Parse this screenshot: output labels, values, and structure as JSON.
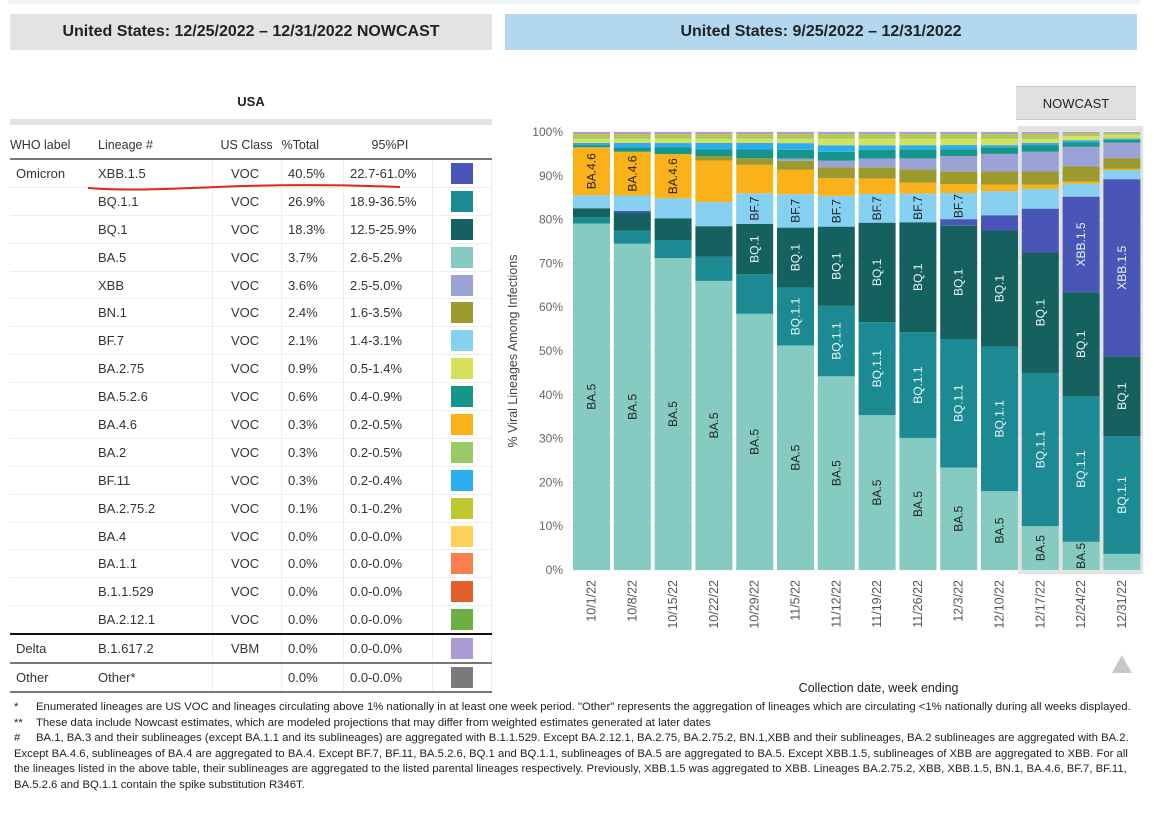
{
  "header": {
    "left_title": "United States: 12/25/2022 – 12/31/2022 NOWCAST",
    "right_title": "United States: 9/25/2022 – 12/31/2022"
  },
  "table": {
    "region_title": "USA",
    "columns": [
      "WHO label",
      "Lineage #",
      "US Class",
      "%Total",
      "95%PI"
    ],
    "rows": [
      {
        "who": "Omicron",
        "lineage": "XBB.1.5",
        "cls": "VOC",
        "pct": "40.5%",
        "pi": "22.7-61.0%",
        "color": "#4a55b8"
      },
      {
        "who": "",
        "lineage": "BQ.1.1",
        "cls": "VOC",
        "pct": "26.9%",
        "pi": "18.9-36.5%",
        "color": "#1b8a93"
      },
      {
        "who": "",
        "lineage": "BQ.1",
        "cls": "VOC",
        "pct": "18.3%",
        "pi": "12.5-25.9%",
        "color": "#14615f"
      },
      {
        "who": "",
        "lineage": "BA.5",
        "cls": "VOC",
        "pct": "3.7%",
        "pi": "2.6-5.2%",
        "color": "#86cbc2"
      },
      {
        "who": "",
        "lineage": "XBB",
        "cls": "VOC",
        "pct": "3.6%",
        "pi": "2.5-5.0%",
        "color": "#9ba3d6"
      },
      {
        "who": "",
        "lineage": "BN.1",
        "cls": "VOC",
        "pct": "2.4%",
        "pi": "1.6-3.5%",
        "color": "#9a9a2e"
      },
      {
        "who": "",
        "lineage": "BF.7",
        "cls": "VOC",
        "pct": "2.1%",
        "pi": "1.4-3.1%",
        "color": "#86d0f2"
      },
      {
        "who": "",
        "lineage": "BA.2.75",
        "cls": "VOC",
        "pct": "0.9%",
        "pi": "0.5-1.4%",
        "color": "#d6e05a"
      },
      {
        "who": "",
        "lineage": "BA.5.2.6",
        "cls": "VOC",
        "pct": "0.6%",
        "pi": "0.4-0.9%",
        "color": "#14968a"
      },
      {
        "who": "",
        "lineage": "BA.4.6",
        "cls": "VOC",
        "pct": "0.3%",
        "pi": "0.2-0.5%",
        "color": "#fbb21a"
      },
      {
        "who": "",
        "lineage": "BA.2",
        "cls": "VOC",
        "pct": "0.3%",
        "pi": "0.2-0.5%",
        "color": "#98cb68"
      },
      {
        "who": "",
        "lineage": "BF.11",
        "cls": "VOC",
        "pct": "0.3%",
        "pi": "0.2-0.4%",
        "color": "#2aaeef"
      },
      {
        "who": "",
        "lineage": "BA.2.75.2",
        "cls": "VOC",
        "pct": "0.1%",
        "pi": "0.1-0.2%",
        "color": "#bfc72f"
      },
      {
        "who": "",
        "lineage": "BA.4",
        "cls": "VOC",
        "pct": "0.0%",
        "pi": "0.0-0.0%",
        "color": "#fdd25a"
      },
      {
        "who": "",
        "lineage": "BA.1.1",
        "cls": "VOC",
        "pct": "0.0%",
        "pi": "0.0-0.0%",
        "color": "#fb7f4c"
      },
      {
        "who": "",
        "lineage": "B.1.1.529",
        "cls": "VOC",
        "pct": "0.0%",
        "pi": "0.0-0.0%",
        "color": "#e2602a"
      },
      {
        "who": "",
        "lineage": "BA.2.12.1",
        "cls": "VOC",
        "pct": "0.0%",
        "pi": "0.0-0.0%",
        "color": "#6eae42"
      },
      {
        "who": "Delta",
        "lineage": "B.1.617.2",
        "cls": "VBM",
        "pct": "0.0%",
        "pi": "0.0-0.0%",
        "color": "#ab9bd6"
      },
      {
        "who": "Other",
        "lineage": "Other*",
        "cls": "",
        "pct": "0.0%",
        "pi": "0.0-0.0%",
        "color": "#7a7a7a"
      }
    ]
  },
  "nowcast_label": "NOWCAST",
  "chart_data": {
    "type": "bar",
    "stacked": true,
    "title": "United States: 9/25/2022 – 12/31/2022",
    "xlabel": "Collection date, week ending",
    "ylabel": "% Viral Lineages Among Infections",
    "ylim": [
      0,
      100
    ],
    "yticks": [
      "0%",
      "10%",
      "20%",
      "30%",
      "40%",
      "50%",
      "60%",
      "70%",
      "80%",
      "90%",
      "100%"
    ],
    "categories": [
      "10/1/22",
      "10/8/22",
      "10/15/22",
      "10/22/22",
      "10/29/22",
      "11/5/22",
      "11/12/22",
      "11/19/22",
      "11/26/22",
      "12/3/22",
      "12/10/22",
      "12/17/22",
      "12/24/22",
      "12/31/22"
    ],
    "nowcast_categories": [
      "12/17/22",
      "12/24/22",
      "12/31/22"
    ],
    "series": [
      {
        "name": "BA.5",
        "color": "#86cbc2",
        "values": [
          79.5,
          74.5,
          70.5,
          66,
          58.5,
          50.5,
          44,
          35,
          30,
          23.5,
          18,
          10,
          6.5,
          3.7
        ]
      },
      {
        "name": "BQ.1.1",
        "color": "#1b8a93",
        "values": [
          1.5,
          3,
          4,
          5.5,
          9,
          13,
          16,
          21,
          24,
          29.5,
          33,
          35,
          33.5,
          26.9
        ]
      },
      {
        "name": "BQ.1",
        "color": "#14615f",
        "values": [
          2,
          4,
          5,
          7,
          11.5,
          13.5,
          18,
          22.5,
          25,
          26,
          26.5,
          27.5,
          24,
          18.3
        ]
      },
      {
        "name": "XBB.1.5",
        "color": "#4a55b8",
        "values": [
          0,
          0.5,
          0,
          0,
          0,
          0,
          0,
          0,
          0,
          1.5,
          3.5,
          10,
          22,
          40.5
        ]
      },
      {
        "name": "BF.7",
        "color": "#86d0f2",
        "values": [
          3,
          3.5,
          4.5,
          5.5,
          7,
          7.5,
          7,
          6.5,
          6.5,
          6,
          5.5,
          4.5,
          3,
          2.1
        ]
      },
      {
        "name": "BA.4.6",
        "color": "#fbb21a",
        "values": [
          11,
          10,
          10,
          9.5,
          6.5,
          5.5,
          4,
          3.5,
          2.5,
          2,
          1.5,
          1,
          0.5,
          0.3
        ]
      },
      {
        "name": "BN.1",
        "color": "#9a9a2e",
        "values": [
          0,
          0,
          0,
          1,
          1.5,
          2,
          2.5,
          2.5,
          3,
          3,
          3,
          3,
          3.5,
          2.4
        ]
      },
      {
        "name": "XBB",
        "color": "#9ba3d6",
        "values": [
          0,
          0,
          0,
          0,
          0,
          0.5,
          1.5,
          2,
          2.5,
          3.5,
          4,
          4.5,
          4.5,
          3.6
        ]
      },
      {
        "name": "BA.5.2.6",
        "color": "#14968a",
        "values": [
          0.5,
          1,
          1.5,
          1.5,
          2,
          2,
          2,
          2,
          2,
          1.5,
          1.5,
          1.5,
          1,
          0.6
        ]
      },
      {
        "name": "BF.11",
        "color": "#2aaeef",
        "values": [
          0.5,
          1,
          1,
          1.5,
          1.5,
          1.5,
          1.5,
          1,
          1,
          1,
          0.5,
          0.5,
          0.5,
          0.3
        ]
      },
      {
        "name": "BA.2.75",
        "color": "#d6e05a",
        "values": [
          1,
          1,
          1,
          1,
          1,
          1,
          1.5,
          1.5,
          1.5,
          1.5,
          1.5,
          1,
          1,
          0.9
        ]
      },
      {
        "name": "BA.2",
        "color": "#98cb68",
        "values": [
          0.5,
          0.5,
          0.5,
          0.5,
          0.5,
          0.5,
          0.5,
          0.5,
          0.5,
          0.5,
          0.5,
          0.5,
          0.3,
          0.3
        ]
      },
      {
        "name": "BA.2.75.2",
        "color": "#bfc72f",
        "values": [
          0.5,
          0.5,
          0.5,
          0.5,
          0.5,
          0.5,
          0.5,
          0.5,
          0.5,
          0.5,
          0.5,
          0.5,
          0.3,
          0.1
        ]
      },
      {
        "name": "Other",
        "color": "#ab9bd6",
        "values": [
          0.5,
          0.5,
          0.5,
          0.5,
          0.5,
          0.5,
          0.5,
          0.5,
          0.5,
          0.5,
          0.5,
          0.5,
          0.3,
          0.2
        ]
      }
    ],
    "bar_labels": [
      {
        "category": "10/1/22",
        "series": "BA.5",
        "text": "BA.5"
      },
      {
        "category": "10/1/22",
        "series": "BA.4.6",
        "text": "BA.4.6"
      },
      {
        "category": "10/8/22",
        "series": "BA.5",
        "text": "BA.5"
      },
      {
        "category": "10/8/22",
        "series": "BA.4.6",
        "text": "BA.4.6"
      },
      {
        "category": "10/15/22",
        "series": "BA.5",
        "text": "BA.5"
      },
      {
        "category": "10/15/22",
        "series": "BA.4.6",
        "text": "BA.4.6"
      },
      {
        "category": "10/22/22",
        "series": "BA.5",
        "text": "BA.5"
      },
      {
        "category": "10/29/22",
        "series": "BA.5",
        "text": "BA.5"
      },
      {
        "category": "10/29/22",
        "series": "BQ.1",
        "text": "BQ.1"
      },
      {
        "category": "10/29/22",
        "series": "BF.7",
        "text": "BF.7"
      },
      {
        "category": "11/5/22",
        "series": "BA.5",
        "text": "BA.5"
      },
      {
        "category": "11/5/22",
        "series": "BQ.1.1",
        "text": "BQ.1.1"
      },
      {
        "category": "11/5/22",
        "series": "BQ.1",
        "text": "BQ.1"
      },
      {
        "category": "11/5/22",
        "series": "BF.7",
        "text": "BF.7"
      },
      {
        "category": "11/12/22",
        "series": "BA.5",
        "text": "BA.5"
      },
      {
        "category": "11/12/22",
        "series": "BQ.1.1",
        "text": "BQ.1.1"
      },
      {
        "category": "11/12/22",
        "series": "BQ.1",
        "text": "BQ.1"
      },
      {
        "category": "11/12/22",
        "series": "BF.7",
        "text": "BF.7"
      },
      {
        "category": "11/19/22",
        "series": "BA.5",
        "text": "BA.5"
      },
      {
        "category": "11/19/22",
        "series": "BQ.1.1",
        "text": "BQ.1.1"
      },
      {
        "category": "11/19/22",
        "series": "BQ.1",
        "text": "BQ.1"
      },
      {
        "category": "11/19/22",
        "series": "BF.7",
        "text": "BF.7"
      },
      {
        "category": "11/26/22",
        "series": "BA.5",
        "text": "BA.5"
      },
      {
        "category": "11/26/22",
        "series": "BQ.1.1",
        "text": "BQ.1.1"
      },
      {
        "category": "11/26/22",
        "series": "BQ.1",
        "text": "BQ.1"
      },
      {
        "category": "11/26/22",
        "series": "BF.7",
        "text": "BF.7"
      },
      {
        "category": "12/3/22",
        "series": "BA.5",
        "text": "BA.5"
      },
      {
        "category": "12/3/22",
        "series": "BQ.1.1",
        "text": "BQ.1.1"
      },
      {
        "category": "12/3/22",
        "series": "BQ.1",
        "text": "BQ.1"
      },
      {
        "category": "12/3/22",
        "series": "BF.7",
        "text": "BF.7"
      },
      {
        "category": "12/10/22",
        "series": "BA.5",
        "text": "BA.5"
      },
      {
        "category": "12/10/22",
        "series": "BQ.1.1",
        "text": "BQ.1.1"
      },
      {
        "category": "12/10/22",
        "series": "BQ.1",
        "text": "BQ.1"
      },
      {
        "category": "12/17/22",
        "series": "BA.5",
        "text": "BA.5"
      },
      {
        "category": "12/17/22",
        "series": "BQ.1.1",
        "text": "BQ.1.1"
      },
      {
        "category": "12/17/22",
        "series": "BQ.1",
        "text": "BQ.1"
      },
      {
        "category": "12/24/22",
        "series": "BA.5",
        "text": "BA.5"
      },
      {
        "category": "12/24/22",
        "series": "BQ.1.1",
        "text": "BQ.1.1"
      },
      {
        "category": "12/24/22",
        "series": "BQ.1",
        "text": "BQ.1"
      },
      {
        "category": "12/24/22",
        "series": "XBB.1.5",
        "text": "XBB.1.5"
      },
      {
        "category": "12/31/22",
        "series": "BQ.1.1",
        "text": "BQ.1.1"
      },
      {
        "category": "12/31/22",
        "series": "BQ.1",
        "text": "BQ.1"
      },
      {
        "category": "12/31/22",
        "series": "XBB.1.5",
        "text": "XBB.1.5"
      }
    ],
    "legend": "none",
    "grid": true
  },
  "footnotes": [
    {
      "mark": "*",
      "text": "Enumerated lineages are US VOC and lineages circulating above 1% nationally in at least one week period. \"Other\" represents the aggregation of lineages which are circulating <1% nationally during all weeks displayed."
    },
    {
      "mark": "**",
      "text": "These data include Nowcast estimates, which are modeled projections that may differ from weighted estimates generated at later dates"
    },
    {
      "mark": "#",
      "text": "BA.1, BA.3 and their sublineages (except BA.1.1 and its sublineages) are aggregated with B.1.1.529. Except BA.2.12.1, BA.2.75, BA.2.75.2, BN.1,XBB and their sublineages, BA.2 sublineages are aggregated with BA.2. Except BA.4.6, sublineages of BA.4 are aggregated to BA.4. Except BF.7, BF.11, BA.5.2.6, BQ.1 and BQ.1.1, sublineages of BA.5 are aggregated to BA.5. Except XBB.1.5, sublineages of XBB are aggregated to XBB. For all the lineages listed in the above table, their sublineages are aggregated to the listed parental lineages respectively. Previously, XBB.1.5 was aggregated to XBB. Lineages BA.2.75.2, XBB, XBB.1.5, BN.1, BA.4.6, BF.7, BF.11, BA.5.2.6 and BQ.1.1 contain the spike substitution R346T."
    }
  ]
}
